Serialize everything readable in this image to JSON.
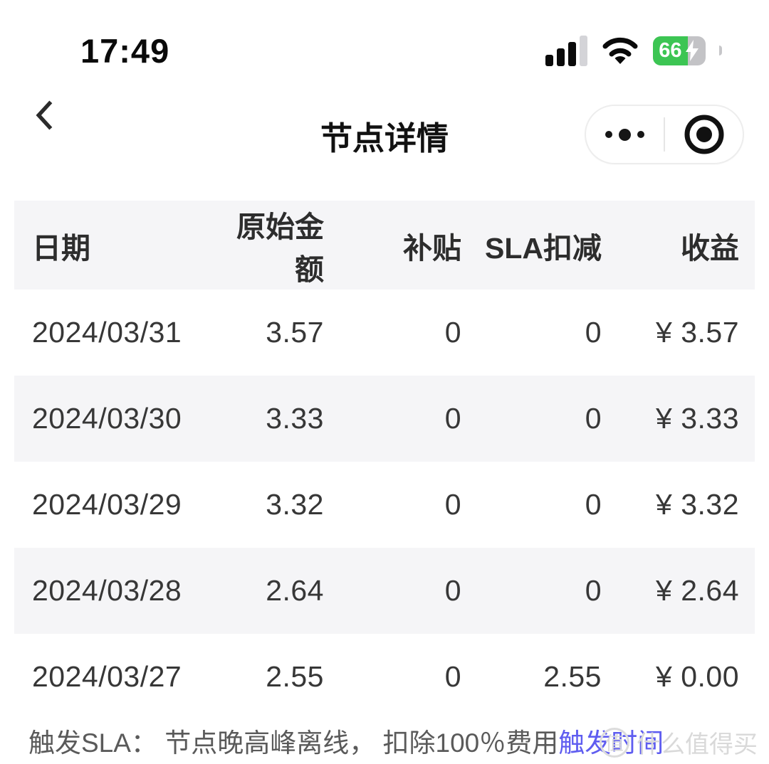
{
  "status_bar": {
    "time": "17:49",
    "battery_percent": "66",
    "icons": {
      "signal": "cellular-signal-3of4",
      "wifi": "wifi",
      "battery_charging": "lightning-bolt"
    }
  },
  "nav": {
    "title": "节点详情",
    "back_icon": "chevron-left",
    "capsule": {
      "more_icon": "ellipsis-dots",
      "minimize_icon": "record-circle"
    }
  },
  "table": {
    "columns": [
      "日期",
      "原始金额",
      "补贴",
      "SLA扣减",
      "收益"
    ],
    "rows": [
      [
        "2024/03/31",
        "3.57",
        "0",
        "0",
        "¥ 3.57"
      ],
      [
        "2024/03/30",
        "3.33",
        "0",
        "0",
        "¥ 3.33"
      ],
      [
        "2024/03/29",
        "3.32",
        "0",
        "0",
        "¥ 3.32"
      ],
      [
        "2024/03/28",
        "2.64",
        "0",
        "0",
        "¥ 2.64"
      ],
      [
        "2024/03/27",
        "2.55",
        "0",
        "2.55",
        "¥ 0.00"
      ]
    ]
  },
  "footer": {
    "note": "触发SLA： 节点晚高峰离线， 扣除100％费用",
    "link": "触发时间",
    "link_color": "#5f5df0"
  },
  "watermark": {
    "badge": "值",
    "text": "什么值得买"
  },
  "colors": {
    "battery_green": "#3cc553",
    "row_alt_bg": "#f5f5f7",
    "link": "#5f5df0",
    "text": "#373737",
    "footer_text": "#5a5a5a"
  }
}
